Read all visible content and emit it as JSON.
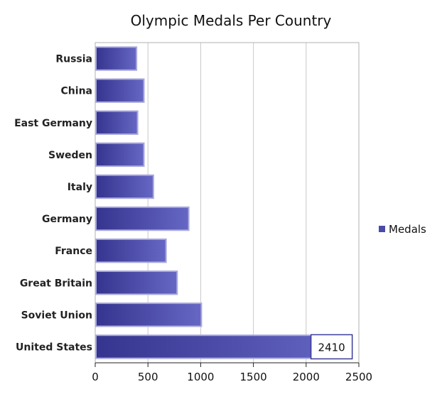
{
  "chart_data": {
    "type": "bar",
    "orientation": "horizontal",
    "title": "Olympic Medals Per Country",
    "xlabel": "",
    "ylabel": "",
    "categories": [
      "Russia",
      "China",
      "East Germany",
      "Sweden",
      "Italy",
      "Germany",
      "France",
      "Great Britain",
      "Soviet Union",
      "United States"
    ],
    "series": [
      {
        "name": "Medals",
        "values": [
          385,
          455,
          395,
          455,
          545,
          880,
          665,
          770,
          1000,
          2410
        ],
        "color": "#4a4aa8"
      }
    ],
    "data_labels": [
      {
        "category": "United States",
        "text": "2410"
      }
    ],
    "xlim": [
      0,
      2500
    ],
    "xticks": [
      "0",
      "500",
      "1000",
      "1500",
      "2000",
      "2500"
    ],
    "grid": "vertical",
    "legend": "right"
  }
}
